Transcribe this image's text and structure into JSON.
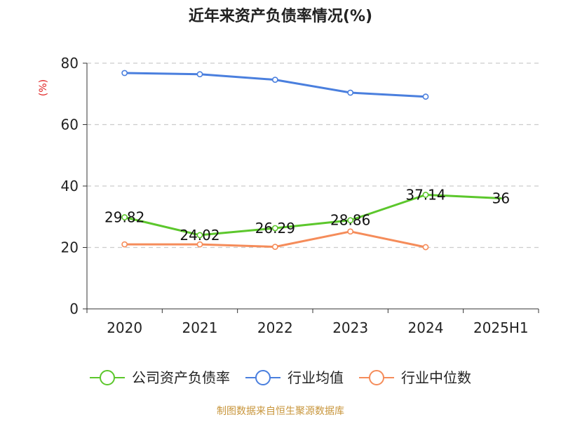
{
  "chart_data": {
    "type": "line",
    "title": "近年来资产负债率情况(%)",
    "ylabel": "(%)",
    "xlabel": "",
    "categories": [
      "2020",
      "2021",
      "2022",
      "2023",
      "2024",
      "2025H1"
    ],
    "ylim": [
      0,
      80
    ],
    "yticks": [
      0,
      20,
      40,
      60,
      80
    ],
    "grid": true,
    "legend_position": "bottom",
    "series": [
      {
        "name": "公司资产负债率",
        "color": "#5cc72c",
        "values": [
          29.82,
          24.02,
          26.29,
          28.86,
          37.14,
          36
        ],
        "labels": [
          "29.82",
          "24.02",
          "26.29",
          "28.86",
          "37.14",
          "36"
        ]
      },
      {
        "name": "行业均值",
        "color": "#4a7fde",
        "values": [
          76.8,
          76.4,
          74.6,
          70.4,
          69.1,
          null
        ]
      },
      {
        "name": "行业中位数",
        "color": "#f58c5a",
        "values": [
          21.0,
          21.0,
          20.2,
          25.2,
          20.1,
          null
        ]
      }
    ]
  },
  "footer": {
    "source": "制图数据来自恒生聚源数据库",
    "source_color": "#c8963c"
  }
}
